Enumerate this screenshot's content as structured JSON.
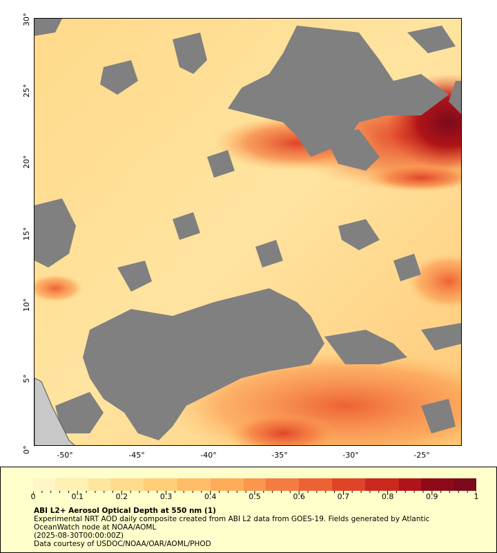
{
  "map": {
    "lat_ticks": [
      "0°",
      "5°",
      "10°",
      "15°",
      "20°",
      "25°",
      "30°"
    ],
    "lon_ticks": [
      "-50°",
      "-45°",
      "-40°",
      "-35°",
      "-30°",
      "-25°"
    ],
    "no_data_color": "#808080",
    "land_color": "#c8c8c8"
  },
  "colorbar": {
    "ticks": [
      "0",
      "0.1",
      "0.2",
      "0.3",
      "0.4",
      "0.5",
      "0.6",
      "0.7",
      "0.8",
      "0.9",
      "1"
    ],
    "colors": [
      "#fff6c8",
      "#fff0b4",
      "#ffe6a0",
      "#ffdb8c",
      "#ffcd78",
      "#ffbd68",
      "#ffab5a",
      "#fb964c",
      "#f57c40",
      "#ed6234",
      "#e04428",
      "#cc281e",
      "#b01418",
      "#8e0a18",
      "#7a0a1c"
    ]
  },
  "legend": {
    "title": "ABI L2+ Aerosol Optical Depth at 550 nm (1)",
    "line1": "Experimental NRT AOD daily composite created from ABI L2 data from GOES-19. Fields generated by Atlantic",
    "line2": "OceanWatch node at NOAA/AOML",
    "line3": "(2025-08-30T00:00:00Z)",
    "line4": "Data courtesy of USDOC/NOAA/OAR/AOML/PHOD"
  }
}
